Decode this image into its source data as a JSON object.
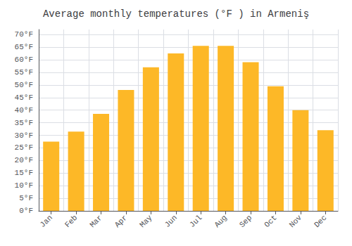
{
  "chart_data": {
    "type": "bar",
    "title": "Average monthly temperatures (°F ) in Armeniş",
    "categories": [
      "Jan",
      "Feb",
      "Mar",
      "Apr",
      "May",
      "Jun",
      "Jul",
      "Aug",
      "Sep",
      "Oct",
      "Nov",
      "Dec"
    ],
    "values": [
      27.5,
      31.5,
      38.5,
      48.0,
      57.0,
      62.5,
      65.5,
      65.5,
      59.0,
      49.5,
      40.0,
      32.0
    ],
    "color": "#FDB827",
    "ylim": [
      0,
      72
    ],
    "yticks": [
      {
        "value": 0,
        "label": "0°F"
      },
      {
        "value": 5,
        "label": "5°F"
      },
      {
        "value": 10,
        "label": "10°F"
      },
      {
        "value": 15,
        "label": "15°F"
      },
      {
        "value": 20,
        "label": "20°F"
      },
      {
        "value": 25,
        "label": "25°F"
      },
      {
        "value": 30,
        "label": "30°F"
      },
      {
        "value": 35,
        "label": "35°F"
      },
      {
        "value": 40,
        "label": "40°F"
      },
      {
        "value": 45,
        "label": "45°F"
      },
      {
        "value": 50,
        "label": "50°F"
      },
      {
        "value": 55,
        "label": "55°F"
      },
      {
        "value": 60,
        "label": "60°F"
      },
      {
        "value": 65,
        "label": "65°F"
      },
      {
        "value": 70,
        "label": "70°F"
      }
    ],
    "grid": true
  }
}
